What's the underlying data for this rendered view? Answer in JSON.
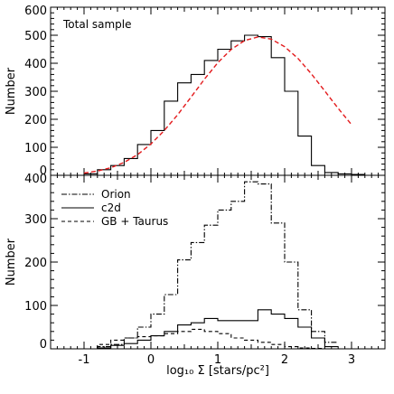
{
  "chart_data": [
    {
      "type": "line",
      "title": "",
      "annotation": "Total sample",
      "xlabel": "",
      "ylabel": "Number",
      "xlim": [
        -1.5,
        3.5
      ],
      "ylim": [
        0,
        600
      ],
      "xticks": [
        -1,
        0,
        1,
        2,
        3
      ],
      "yticks": [
        0,
        100,
        200,
        300,
        400,
        500,
        600
      ],
      "ytick_labels": [
        "0",
        "100",
        "200",
        "300",
        "400",
        "500",
        "600"
      ],
      "series": [
        {
          "style": "histogram-solid",
          "color": "#000000",
          "bin_edges": [
            -1.0,
            -0.8,
            -0.6,
            -0.4,
            -0.2,
            0.0,
            0.2,
            0.4,
            0.6,
            0.8,
            1.0,
            1.2,
            1.4,
            1.6,
            1.8,
            2.0,
            2.2,
            2.4,
            2.6,
            2.8,
            3.0,
            3.2
          ],
          "counts": [
            5,
            20,
            35,
            60,
            110,
            160,
            265,
            330,
            360,
            410,
            450,
            480,
            500,
            495,
            420,
            300,
            140,
            35,
            10,
            5,
            3
          ]
        },
        {
          "style": "gaussian-dashed",
          "color": "#e31a1c",
          "x": [
            -1.0,
            -0.8,
            -0.6,
            -0.4,
            -0.2,
            0.0,
            0.2,
            0.4,
            0.6,
            0.8,
            1.0,
            1.2,
            1.4,
            1.6,
            1.8,
            2.0,
            2.2,
            2.4,
            2.6,
            2.8,
            3.0
          ],
          "y": [
            8,
            15,
            27,
            46,
            74,
            112,
            160,
            216,
            279,
            343,
            402,
            449,
            481,
            494,
            486,
            459,
            417,
            362,
            301,
            239,
            181
          ]
        }
      ]
    },
    {
      "type": "line",
      "title": "",
      "xlabel": "log₁₀ Σ [stars/pc²]",
      "ylabel": "Number",
      "xlim": [
        -1.5,
        3.5
      ],
      "ylim": [
        0,
        400
      ],
      "xticks": [
        -1,
        0,
        1,
        2,
        3
      ],
      "yticks": [
        0,
        100,
        200,
        300,
        400
      ],
      "xtick_labels": [
        "-1",
        "0",
        "1",
        "2",
        "3"
      ],
      "ytick_labels": [
        "0",
        "100",
        "200",
        "300",
        "400"
      ],
      "legend": {
        "placement": "top-left",
        "entries": [
          {
            "label": "Orion",
            "style": "dashdot"
          },
          {
            "label": "c2d",
            "style": "solid"
          },
          {
            "label": "GB + Taurus",
            "style": "dashed"
          }
        ]
      },
      "series": [
        {
          "name": "Orion",
          "style": "dashdot",
          "bin_edges": [
            -0.8,
            -0.6,
            -0.4,
            -0.2,
            0.0,
            0.2,
            0.4,
            0.6,
            0.8,
            1.0,
            1.2,
            1.4,
            1.6,
            1.8,
            2.0,
            2.2,
            2.4,
            2.6,
            2.8
          ],
          "counts": [
            5,
            10,
            25,
            50,
            80,
            125,
            205,
            245,
            285,
            320,
            340,
            385,
            380,
            290,
            200,
            90,
            40,
            15
          ]
        },
        {
          "name": "c2d",
          "style": "solid",
          "bin_edges": [
            -0.8,
            -0.6,
            -0.4,
            -0.2,
            0.0,
            0.2,
            0.4,
            0.6,
            0.8,
            1.0,
            1.2,
            1.4,
            1.6,
            1.8,
            2.0,
            2.2,
            2.4,
            2.6,
            2.8
          ],
          "counts": [
            2,
            8,
            12,
            20,
            30,
            40,
            55,
            60,
            70,
            65,
            65,
            65,
            90,
            80,
            70,
            50,
            25,
            5
          ]
        },
        {
          "name": "GB + Taurus",
          "style": "dashed",
          "bin_edges": [
            -0.8,
            -0.6,
            -0.4,
            -0.2,
            0.0,
            0.2,
            0.4,
            0.6,
            0.8,
            1.0,
            1.2,
            1.4,
            1.6,
            1.8,
            2.0,
            2.2,
            2.4,
            2.6,
            2.8
          ],
          "counts": [
            10,
            20,
            25,
            28,
            30,
            35,
            40,
            45,
            40,
            35,
            25,
            20,
            15,
            10,
            5,
            2,
            1,
            0
          ]
        }
      ]
    }
  ]
}
